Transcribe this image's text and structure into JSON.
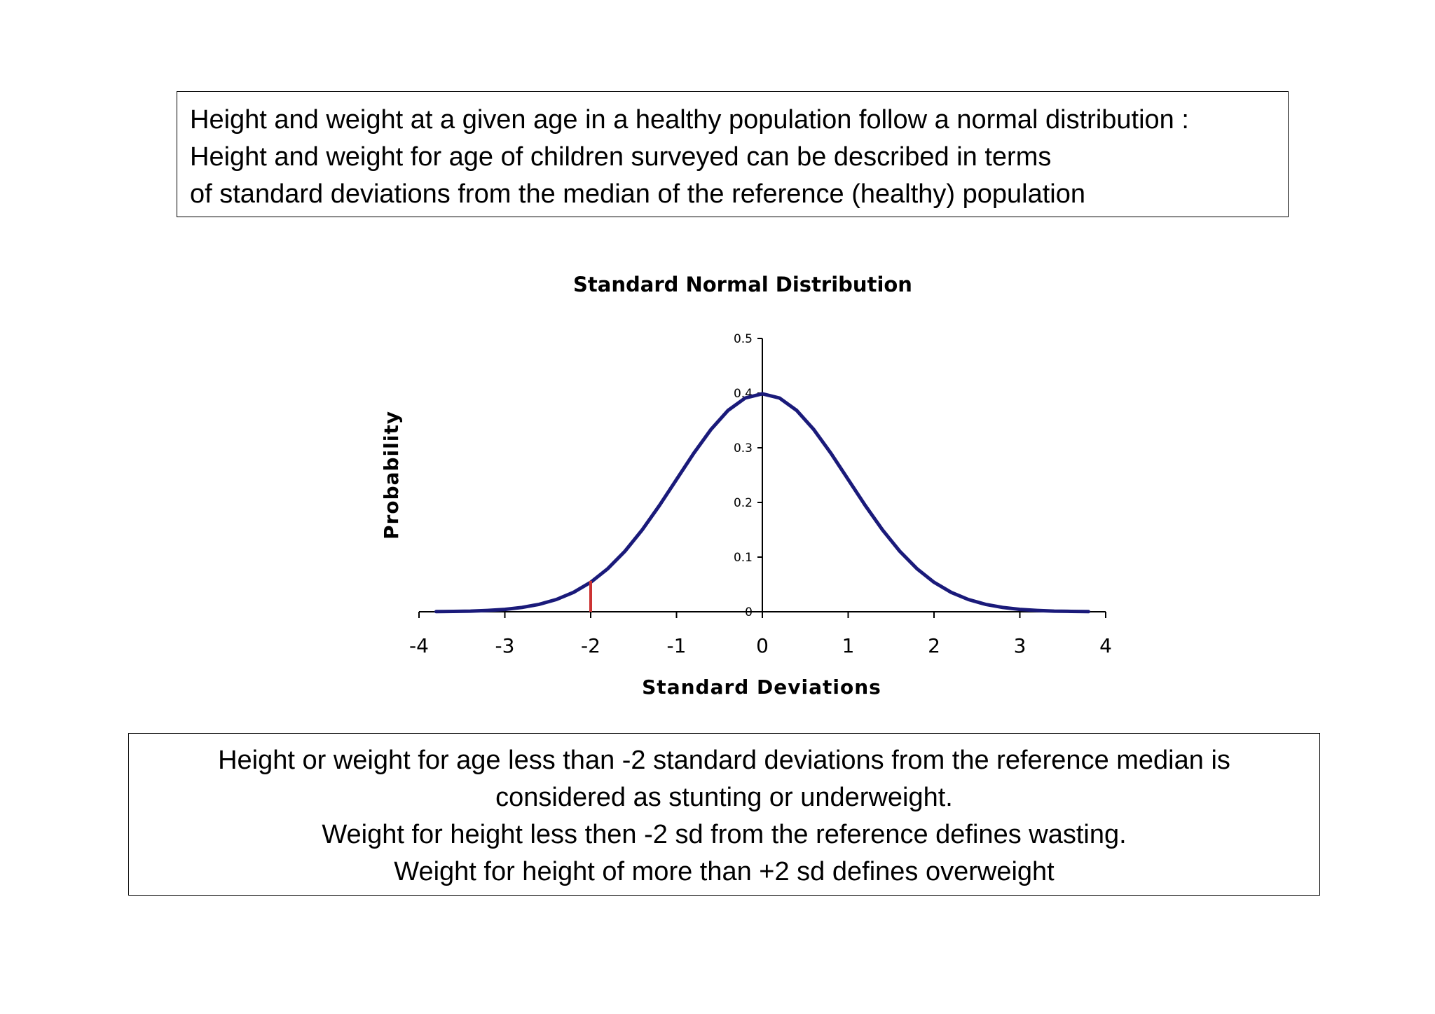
{
  "top_note": {
    "lines": [
      "Height and weight at a given age in a healthy population follow a normal distribution :",
      "Height and weight for age of children surveyed can be described in terms",
      "of standard deviations  from the median of the reference (healthy) population"
    ]
  },
  "bottom_note": {
    "lines": [
      "Height or weight for age less than -2 standard deviations from the reference median is",
      "considered as stunting or underweight.",
      "Weight for height less then -2 sd from the reference defines wasting.",
      "Weight for height of more than +2 sd defines overweight"
    ]
  },
  "chart_data": {
    "type": "line",
    "title": "Standard Normal Distribution",
    "xlabel": "Standard Deviations",
    "ylabel": "Probability",
    "xlim": [
      -4,
      4
    ],
    "ylim": [
      0,
      0.5
    ],
    "xticks": [
      "-4",
      "-3",
      "-2",
      "-1",
      "0",
      "1",
      "2",
      "3",
      "4"
    ],
    "yticks": [
      "0",
      "0.1",
      "0.2",
      "0.3",
      "0.4",
      "0.5"
    ],
    "series": [
      {
        "color": "#1a1a7a",
        "x": [
          -3.8,
          -3.6,
          -3.4,
          -3.2,
          -3.0,
          -2.8,
          -2.6,
          -2.4,
          -2.2,
          -2.0,
          -1.8,
          -1.6,
          -1.4,
          -1.2,
          -1.0,
          -0.8,
          -0.6,
          -0.4,
          -0.2,
          0.0,
          0.2,
          0.4,
          0.6,
          0.8,
          1.0,
          1.2,
          1.4,
          1.6,
          1.8,
          2.0,
          2.2,
          2.4,
          2.6,
          2.8,
          3.0,
          3.2,
          3.4,
          3.6,
          3.8
        ],
        "y": [
          0.0003,
          0.0006,
          0.0012,
          0.0024,
          0.0044,
          0.0079,
          0.0136,
          0.0224,
          0.0355,
          0.054,
          0.079,
          0.1109,
          0.1497,
          0.1942,
          0.242,
          0.2897,
          0.3332,
          0.3683,
          0.391,
          0.3989,
          0.391,
          0.3683,
          0.3332,
          0.2897,
          0.242,
          0.1942,
          0.1497,
          0.1109,
          0.079,
          0.054,
          0.0355,
          0.0224,
          0.0136,
          0.0079,
          0.0044,
          0.0024,
          0.0012,
          0.0006,
          0.0003
        ]
      }
    ],
    "marker": {
      "x": -2,
      "y": 0.054,
      "color": "#cc3333"
    }
  }
}
